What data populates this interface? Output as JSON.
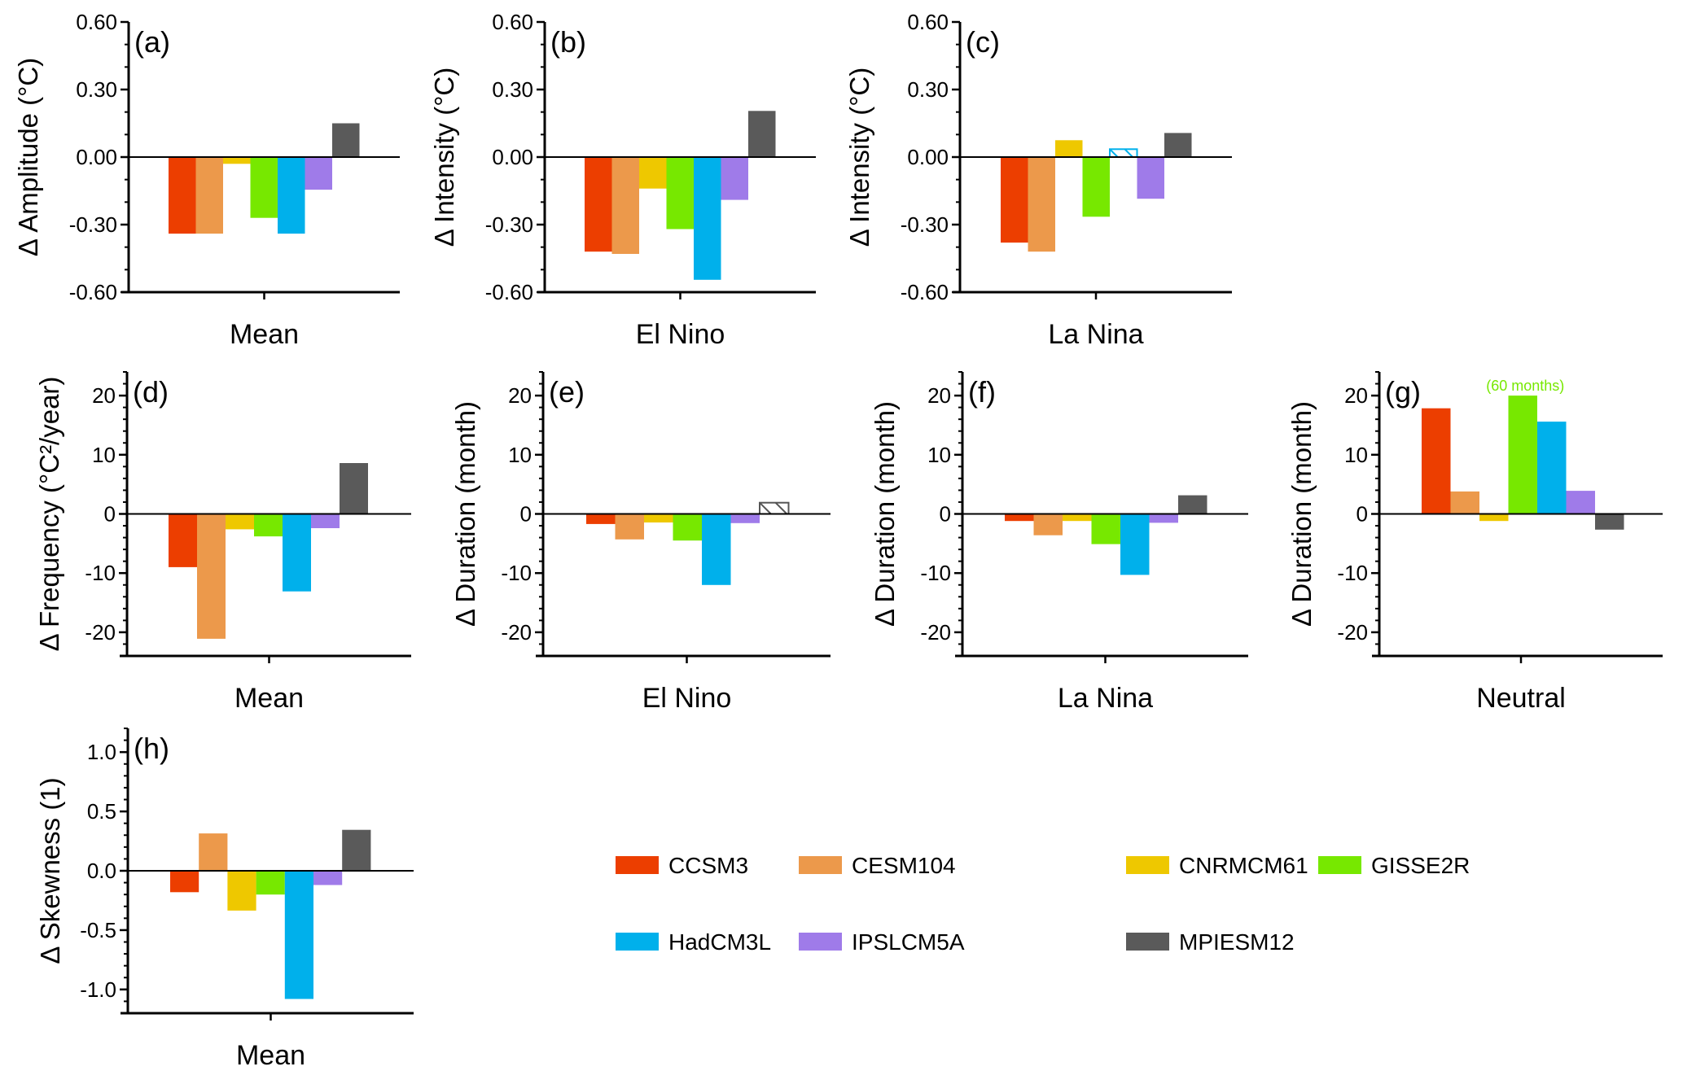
{
  "chart_data": [
    {
      "id": "a",
      "type": "bar",
      "panel_label": "(a)",
      "ylabel": "Δ Amplitude (°C)",
      "category": "Mean",
      "ylim": [
        -0.6,
        0.6
      ],
      "yticks": [
        -0.6,
        -0.3,
        0.0,
        0.3,
        0.6
      ],
      "ytick_labels": [
        "-0.60",
        "-0.30",
        "0.00",
        "0.30",
        "0.60"
      ],
      "minor_step": 0.1,
      "values": [
        -0.34,
        -0.34,
        -0.03,
        -0.27,
        -0.34,
        -0.145,
        0.15
      ],
      "hatched": [
        false,
        false,
        false,
        false,
        false,
        false,
        false
      ]
    },
    {
      "id": "b",
      "type": "bar",
      "panel_label": "(b)",
      "ylabel": "Δ Intensity (°C)",
      "category": "El Nino",
      "ylim": [
        -0.6,
        0.6
      ],
      "yticks": [
        -0.6,
        -0.3,
        0.0,
        0.3,
        0.6
      ],
      "ytick_labels": [
        "-0.60",
        "-0.30",
        "0.00",
        "0.30",
        "0.60"
      ],
      "minor_step": 0.1,
      "values": [
        -0.42,
        -0.43,
        -0.14,
        -0.32,
        -0.545,
        -0.19,
        0.205
      ],
      "hatched": [
        false,
        false,
        false,
        false,
        false,
        false,
        false
      ]
    },
    {
      "id": "c",
      "type": "bar",
      "panel_label": "(c)",
      "ylabel": "Δ Intensity (°C)",
      "category": "La Nina",
      "ylim": [
        -0.6,
        0.6
      ],
      "yticks": [
        -0.6,
        -0.3,
        0.0,
        0.3,
        0.6
      ],
      "ytick_labels": [
        "-0.60",
        "-0.30",
        "0.00",
        "0.30",
        "0.60"
      ],
      "minor_step": 0.1,
      "values": [
        -0.38,
        -0.42,
        0.075,
        -0.265,
        0.035,
        -0.185,
        0.107
      ],
      "hatched": [
        false,
        false,
        false,
        false,
        true,
        false,
        false
      ]
    },
    {
      "id": "d",
      "type": "bar",
      "panel_label": "(d)",
      "ylabel": "Δ Frequency (°C²/year)",
      "category": "Mean",
      "ylim": [
        -24,
        24
      ],
      "yticks": [
        -20,
        -10,
        0,
        10,
        20
      ],
      "ytick_labels": [
        "-20",
        "-10",
        "0",
        "10",
        "20"
      ],
      "minor_step": 2,
      "values": [
        -9.0,
        -21.1,
        -2.6,
        -3.8,
        -13.1,
        -2.4,
        8.6
      ],
      "hatched": [
        false,
        false,
        false,
        false,
        false,
        false,
        false
      ]
    },
    {
      "id": "e",
      "type": "bar",
      "panel_label": "(e)",
      "ylabel": "Δ Duration (month)",
      "category": "El Nino",
      "ylim": [
        -24,
        24
      ],
      "yticks": [
        -20,
        -10,
        0,
        10,
        20
      ],
      "ytick_labels": [
        "-20",
        "-10",
        "0",
        "10",
        "20"
      ],
      "minor_step": 2,
      "values": [
        -1.7,
        -4.3,
        -1.45,
        -4.5,
        -12.0,
        -1.55,
        1.9
      ],
      "hatched": [
        false,
        false,
        false,
        false,
        false,
        false,
        true
      ]
    },
    {
      "id": "f",
      "type": "bar",
      "panel_label": "(f)",
      "ylabel": "Δ Duration (month)",
      "category": "La Nina",
      "ylim": [
        -24,
        24
      ],
      "yticks": [
        -20,
        -10,
        0,
        10,
        20
      ],
      "ytick_labels": [
        "-20",
        "-10",
        "0",
        "10",
        "20"
      ],
      "minor_step": 2,
      "values": [
        -1.2,
        -3.6,
        -1.2,
        -5.1,
        -10.3,
        -1.5,
        3.15
      ],
      "hatched": [
        false,
        false,
        false,
        false,
        false,
        false,
        false
      ]
    },
    {
      "id": "g",
      "type": "bar",
      "panel_label": "(g)",
      "ylabel": "Δ Duration (month)",
      "category": "Neutral",
      "ylim": [
        -24,
        24
      ],
      "yticks": [
        -20,
        -10,
        0,
        10,
        20
      ],
      "ytick_labels": [
        "-20",
        "-10",
        "0",
        "10",
        "20"
      ],
      "minor_step": 2,
      "values": [
        17.85,
        3.8,
        -1.2,
        60,
        15.6,
        3.9,
        -2.65
      ],
      "display_cap": 20,
      "hatched": [
        false,
        false,
        false,
        false,
        false,
        false,
        false
      ],
      "annotation": {
        "series_index": 3,
        "text": "(60 months)",
        "color": "#77e800"
      }
    },
    {
      "id": "h",
      "type": "bar",
      "panel_label": "(h)",
      "ylabel": "Δ Skewness (1)",
      "category": "Mean",
      "ylim": [
        -1.2,
        1.2
      ],
      "yticks": [
        -1.0,
        -0.5,
        0.0,
        0.5,
        1.0
      ],
      "ytick_labels": [
        "-1.0",
        "-0.5",
        "0.0",
        "0.5",
        "1.0"
      ],
      "minor_step": 0.1,
      "values": [
        -0.18,
        0.315,
        -0.335,
        -0.2,
        -1.08,
        -0.12,
        0.345
      ],
      "hatched": [
        false,
        false,
        false,
        false,
        false,
        false,
        false
      ]
    }
  ],
  "legend": {
    "placement": "bottom-right",
    "series": [
      {
        "name": "CCSM3",
        "color": "#ec3e00"
      },
      {
        "name": "CESM104",
        "color": "#ec994b"
      },
      {
        "name": "CNRMCM61",
        "color": "#eec800"
      },
      {
        "name": "GISSE2R",
        "color": "#77e800"
      },
      {
        "name": "HadCM3L",
        "color": "#00b0eb"
      },
      {
        "name": "IPSLCM5A",
        "color": "#9f7be9"
      },
      {
        "name": "MPIESM12",
        "color": "#5a5a5a"
      }
    ]
  }
}
